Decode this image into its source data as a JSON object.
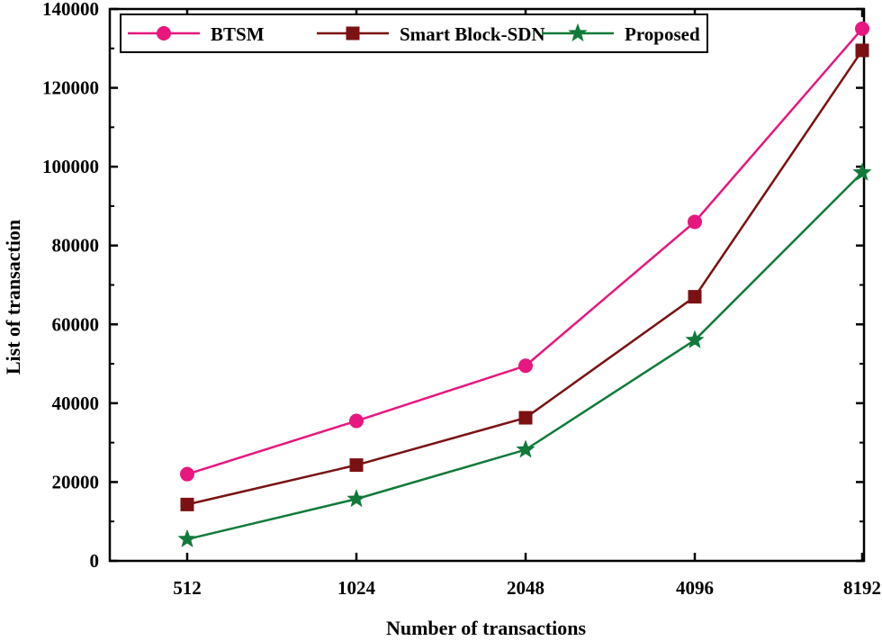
{
  "chart_data": {
    "type": "line",
    "title": "",
    "xlabel": "Number of transactions",
    "ylabel": "List of transaction",
    "categories": [
      "512",
      "1024",
      "2048",
      "4096",
      "8192"
    ],
    "ylim": [
      0,
      140000
    ],
    "yticks": [
      0,
      20000,
      40000,
      60000,
      80000,
      100000,
      120000,
      140000
    ],
    "yticks_labels": [
      "0",
      "20000",
      "40000",
      "60000",
      "80000",
      "100000",
      "120000",
      "140000"
    ],
    "grid": false,
    "legend_position": "top",
    "series": [
      {
        "name": "BTSM",
        "color": "#e8177f",
        "marker": "circle",
        "values": [
          22000,
          35500,
          49500,
          86000,
          135000
        ]
      },
      {
        "name": "Smart Block-SDN",
        "color": "#7b1113",
        "marker": "square",
        "values": [
          14300,
          24300,
          36300,
          67000,
          129500
        ]
      },
      {
        "name": "Proposed",
        "color": "#117a3a",
        "marker": "star",
        "values": [
          5500,
          15700,
          28200,
          56000,
          98500
        ]
      }
    ]
  }
}
